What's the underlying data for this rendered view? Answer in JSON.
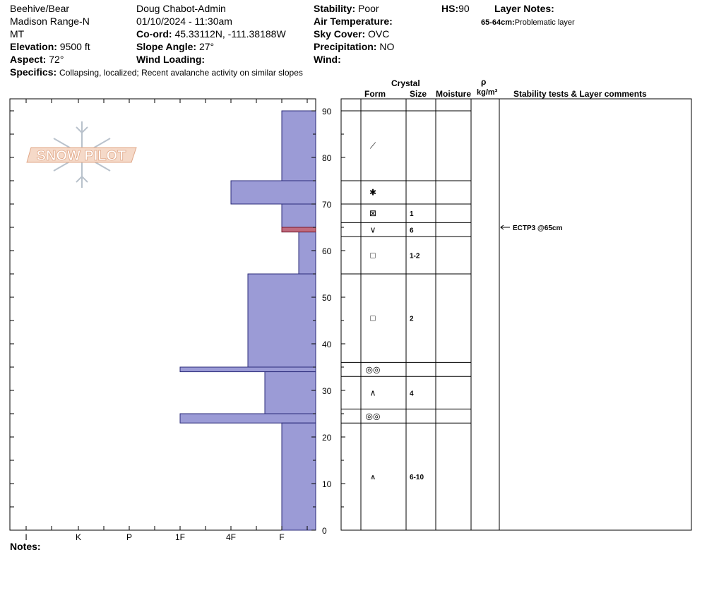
{
  "header": {
    "location": "Beehive/Bear",
    "range": "Madison Range-N",
    "state": "MT",
    "elevation_label": "Elevation:",
    "elevation": "9500 ft",
    "aspect_label": "Aspect:",
    "aspect": "72°",
    "observer": "Doug Chabot-Admin",
    "datetime": "01/10/2024 - 11:30am",
    "coord_label": "Co-ord:",
    "coord": "45.33112N, -111.38188W",
    "slope_label": "Slope Angle:",
    "slope": "27°",
    "wind_loading_label": "Wind Loading:",
    "wind_loading": "",
    "stability_label": "Stability:",
    "stability": "Poor",
    "air_temp_label": "Air Temperature:",
    "air_temp": "",
    "sky_label": "Sky Cover:",
    "sky": "OVC",
    "precip_label": "Precipitation:",
    "precip": "NO",
    "wind_label": "Wind:",
    "wind": "",
    "hs_label": "HS:",
    "hs": "90",
    "layer_notes_label": "Layer Notes:",
    "layer_note_depth": "65-64cm:",
    "layer_note_text": "Problematic layer",
    "specifics_label": "Specifics:",
    "specifics": "Collapsing, localized; Recent avalanche activity on similar slopes"
  },
  "columns": {
    "crystal": "Crystal",
    "form": "Form",
    "size": "Size",
    "moisture": "Moisture",
    "rho": "ρ",
    "density_unit": "kg/m³",
    "comments": "Stability tests & Layer comments"
  },
  "logo_text": "SNOW PILOT",
  "notes_label": "Notes:",
  "chart_data": {
    "type": "bar",
    "description_axis_y": "height (cm)",
    "ylim": [
      0,
      90
    ],
    "yticks": [
      0,
      10,
      20,
      30,
      40,
      50,
      60,
      70,
      80,
      90
    ],
    "hardness_scale": [
      "I",
      "K",
      "P",
      "1F",
      "4F",
      "F"
    ],
    "series": [
      {
        "layers": [
          {
            "top": 90,
            "bottom": 75,
            "hardness": "F"
          },
          {
            "top": 75,
            "bottom": 70,
            "hardness": "4F"
          },
          {
            "top": 70,
            "bottom": 64,
            "hardness": "F"
          },
          {
            "top": 64,
            "bottom": 55,
            "hardness": "F+"
          },
          {
            "top": 55,
            "bottom": 35,
            "hardness": "4F+"
          },
          {
            "top": 35,
            "bottom": 34,
            "hardness": "1F"
          },
          {
            "top": 34,
            "bottom": 25,
            "hardness": "4F-"
          },
          {
            "top": 25,
            "bottom": 23,
            "hardness": "1F"
          },
          {
            "top": 23,
            "bottom": 0,
            "hardness": "F"
          }
        ]
      }
    ],
    "problem_layer": {
      "top": 65,
      "bottom": 64
    }
  },
  "layer_table": {
    "boundaries": [
      90,
      75,
      70,
      66,
      63,
      55,
      36,
      33,
      26,
      23,
      0
    ],
    "rows": [
      {
        "form": "⟋",
        "size": ""
      },
      {
        "form": "✱",
        "size": ""
      },
      {
        "form": "⊠",
        "size": "1"
      },
      {
        "form": "∨",
        "size": "6"
      },
      {
        "form": "□",
        "size": "1-2"
      },
      {
        "form": "□",
        "size": "2"
      },
      {
        "form": "◎◎",
        "size": ""
      },
      {
        "form": "∧",
        "size": "4"
      },
      {
        "form": "◎◎",
        "size": ""
      },
      {
        "form": "⩚",
        "size": "6-10"
      }
    ],
    "test_result": "ECTP3 @65cm",
    "test_depth": 65
  }
}
